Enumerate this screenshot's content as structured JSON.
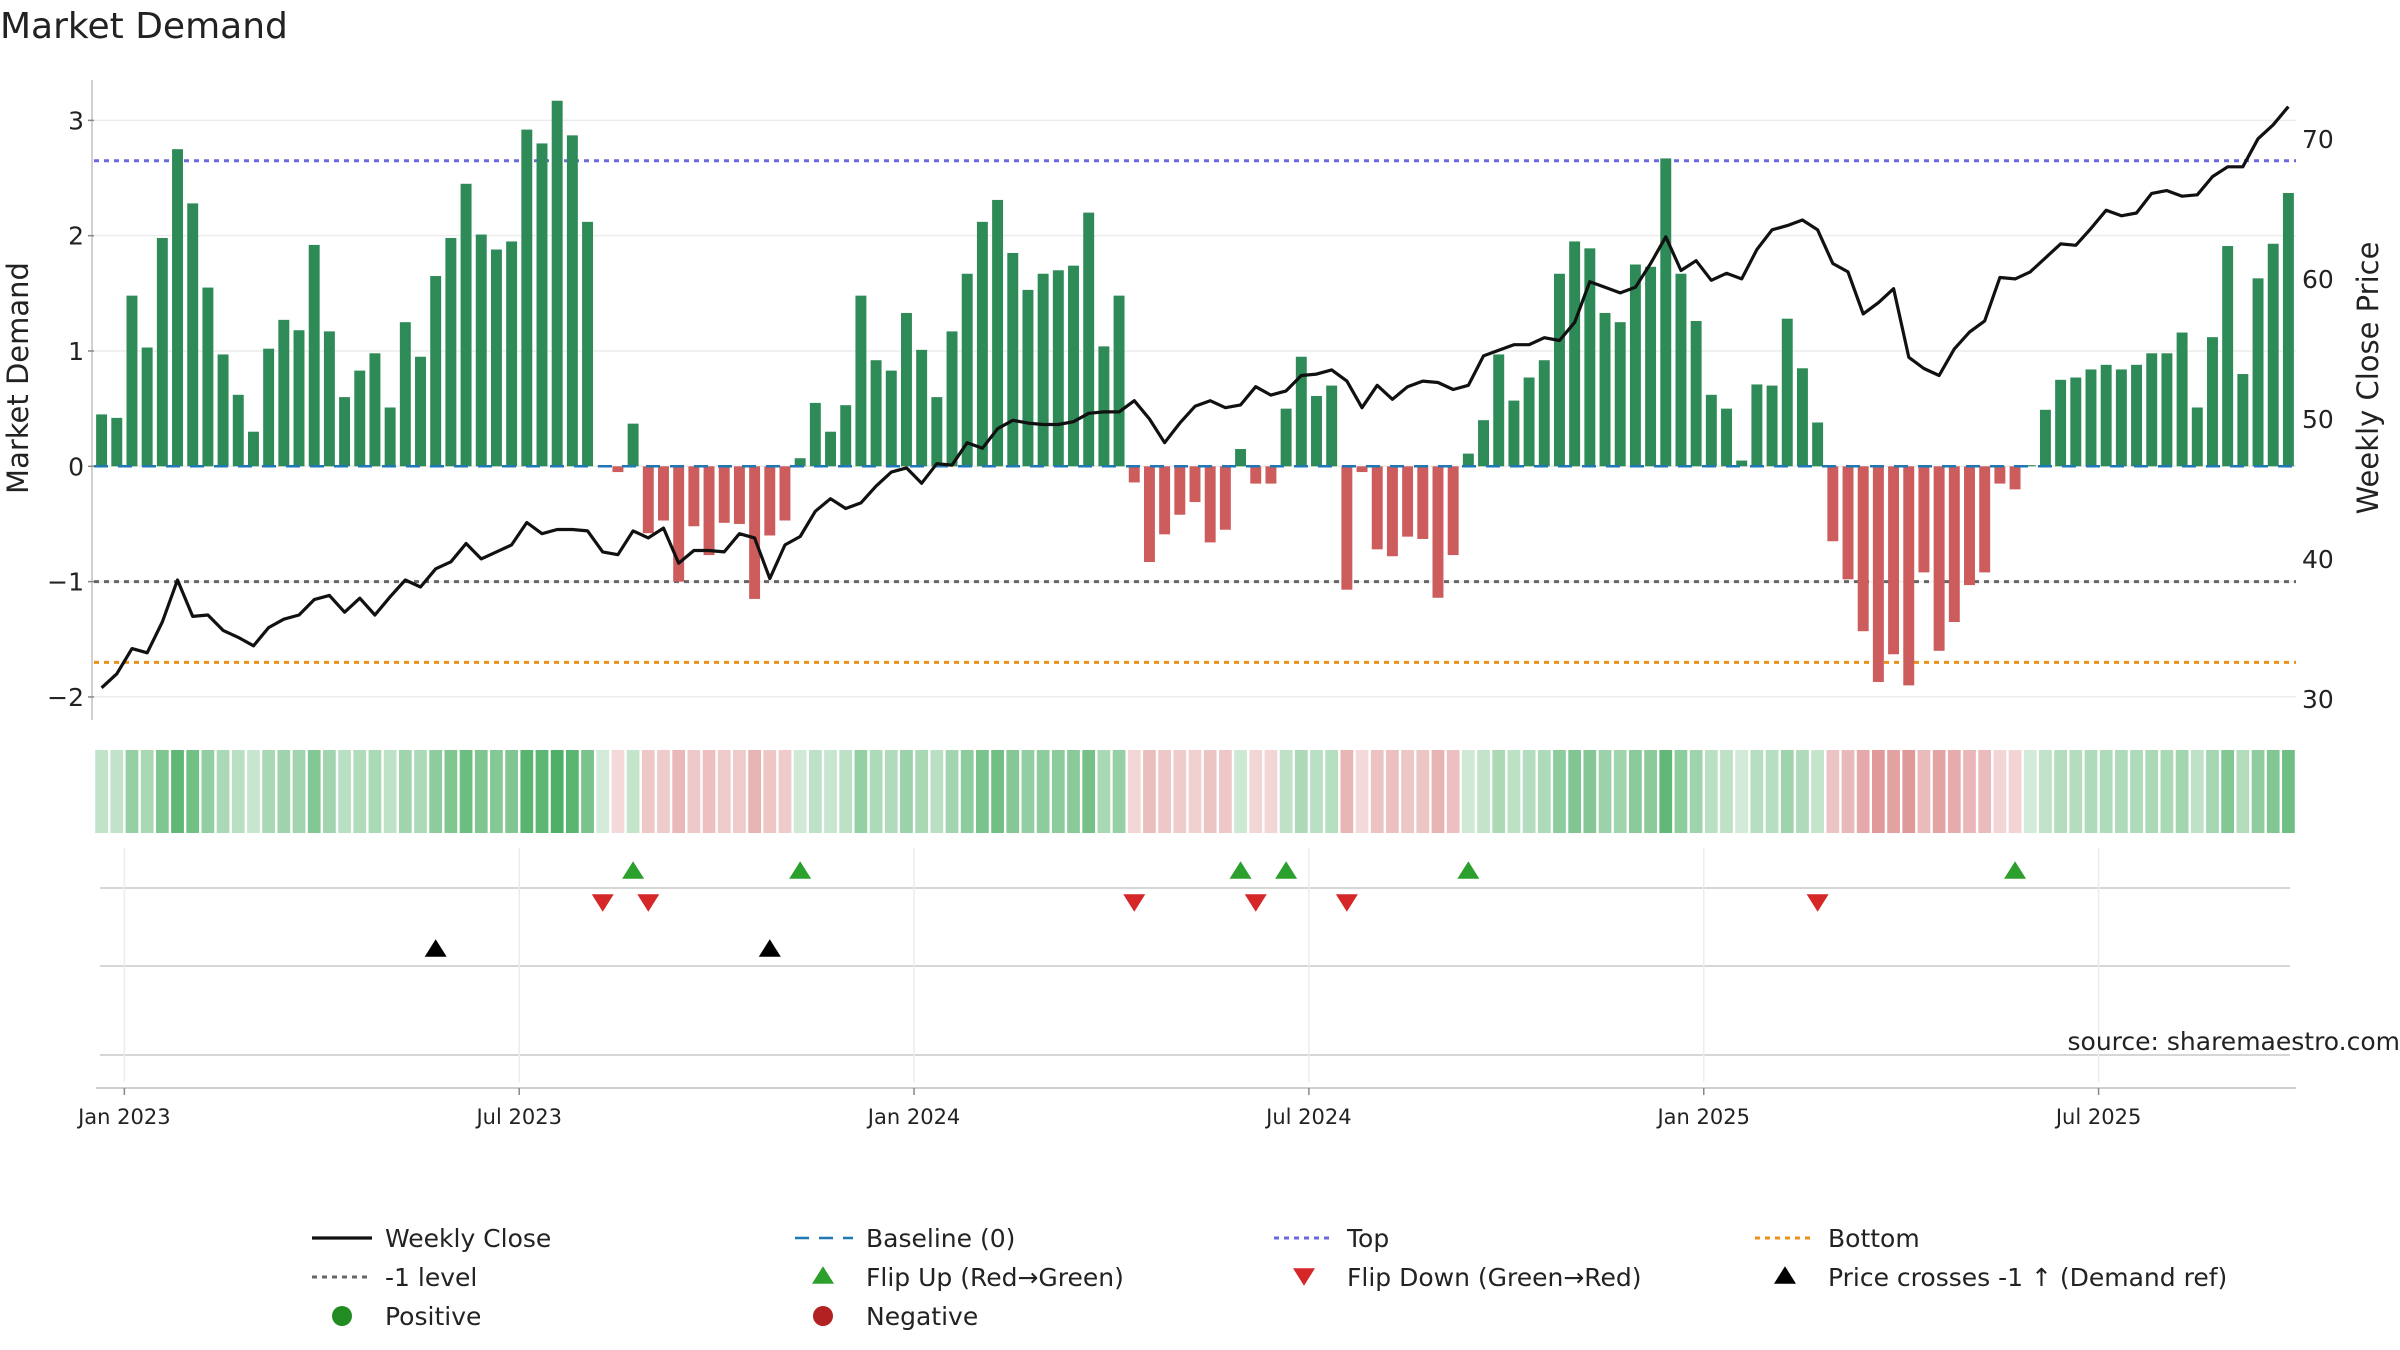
{
  "chart_data": {
    "type": "bar",
    "title": "Market Demand",
    "ylabel": "Market Demand",
    "y2label": "Weekly Close Price",
    "ylim": [
      -2.2,
      3.35
    ],
    "y2lim": [
      28.5,
      74.2
    ],
    "yticks": [
      3,
      2,
      1,
      0,
      -1,
      -2
    ],
    "yticklabels": [
      "3",
      "2",
      "1",
      "0",
      "−1",
      "−2"
    ],
    "y2ticks": [
      70,
      60,
      50,
      40,
      30
    ],
    "y2ticklabels": [
      "70",
      "60",
      "50",
      "40",
      "30"
    ],
    "xtick_labels": [
      "Jan 2023",
      "Jul 2023",
      "Jan 2024",
      "Jul 2024",
      "Jan 2025",
      "Jul 2025"
    ],
    "xtick_index": [
      1.5,
      27.5,
      53.5,
      79.5,
      105.5,
      131.5
    ],
    "hlines": {
      "top": 2.65,
      "minus_one": -1,
      "bottom": -1.7
    },
    "demand": [
      0.45,
      0.42,
      1.48,
      1.03,
      1.98,
      2.75,
      2.28,
      1.55,
      0.97,
      0.62,
      0.3,
      1.02,
      1.27,
      1.18,
      1.92,
      1.17,
      0.6,
      0.83,
      0.98,
      0.51,
      1.25,
      0.95,
      1.65,
      1.98,
      2.45,
      2.01,
      1.88,
      1.95,
      2.92,
      2.8,
      3.17,
      2.87,
      2.12,
      0.0,
      -0.05,
      0.37,
      -0.58,
      -0.47,
      -1.0,
      -0.52,
      -0.77,
      -0.49,
      -0.5,
      -1.15,
      -0.6,
      -0.47,
      0.07,
      0.55,
      0.3,
      0.53,
      1.48,
      0.92,
      0.83,
      1.33,
      1.01,
      0.6,
      1.17,
      1.67,
      2.12,
      2.31,
      1.85,
      1.53,
      1.67,
      1.7,
      1.74,
      2.2,
      1.04,
      1.48,
      -0.14,
      -0.83,
      -0.59,
      -0.42,
      -0.31,
      -0.66,
      -0.55,
      0.15,
      -0.15,
      -0.15,
      0.5,
      0.95,
      0.61,
      0.7,
      -1.07,
      -0.05,
      -0.72,
      -0.78,
      -0.61,
      -0.63,
      -1.14,
      -0.77,
      0.11,
      0.4,
      0.97,
      0.57,
      0.77,
      0.92,
      1.67,
      1.95,
      1.89,
      1.33,
      1.25,
      1.75,
      1.73,
      2.67,
      1.67,
      1.26,
      0.62,
      0.5,
      0.05,
      0.71,
      0.7,
      1.28,
      0.85,
      0.38,
      -0.65,
      -0.98,
      -1.43,
      -1.87,
      -1.63,
      -1.9,
      -0.92,
      -1.6,
      -1.35,
      -1.03,
      -0.92,
      -0.15,
      -0.2,
      0.01,
      0.49,
      0.75,
      0.77,
      0.84,
      0.88,
      0.84,
      0.88,
      0.98,
      0.98,
      1.16,
      0.51,
      1.12,
      1.91,
      0.8,
      1.63,
      1.93,
      2.37
    ],
    "weekly_close": [
      30.8,
      31.8,
      33.6,
      33.3,
      35.5,
      38.5,
      35.9,
      36.0,
      34.9,
      34.4,
      33.8,
      35.1,
      35.7,
      36.0,
      37.1,
      37.4,
      36.2,
      37.2,
      36.0,
      37.3,
      38.5,
      38.0,
      39.3,
      39.8,
      41.1,
      40.0,
      40.5,
      41.0,
      42.6,
      41.8,
      42.1,
      42.1,
      42.0,
      40.5,
      40.3,
      42.0,
      41.5,
      42.2,
      39.7,
      40.6,
      40.6,
      40.5,
      41.8,
      41.5,
      38.6,
      41.0,
      41.6,
      43.4,
      44.3,
      43.6,
      44.0,
      45.2,
      46.2,
      46.5,
      45.4,
      46.8,
      46.7,
      48.3,
      47.9,
      49.3,
      49.9,
      49.7,
      49.6,
      49.6,
      49.8,
      50.4,
      50.5,
      50.5,
      51.3,
      50.0,
      48.3,
      49.7,
      50.9,
      51.3,
      50.8,
      51.0,
      52.3,
      51.7,
      52.0,
      53.1,
      53.2,
      53.5,
      52.7,
      50.8,
      52.4,
      51.4,
      52.3,
      52.7,
      52.6,
      52.1,
      52.4,
      54.5,
      54.9,
      55.3,
      55.3,
      55.8,
      55.6,
      56.9,
      59.8,
      59.4,
      59.0,
      59.4,
      61.1,
      63.0,
      60.6,
      61.3,
      59.9,
      60.4,
      60.0,
      62.1,
      63.5,
      63.8,
      64.2,
      63.5,
      61.1,
      60.5,
      57.5,
      58.3,
      59.3,
      54.4,
      53.6,
      53.1,
      55.0,
      56.2,
      57.0,
      60.1,
      60.0,
      60.5,
      61.5,
      62.5,
      62.4,
      63.6,
      64.9,
      64.5,
      64.7,
      66.1,
      66.3,
      65.9,
      66.0,
      67.3,
      68.0,
      68.0,
      70.0,
      71.0,
      72.3
    ],
    "flip_up_index": [
      35,
      46,
      75,
      78,
      90,
      126
    ],
    "flip_down_index": [
      33,
      36,
      68,
      76,
      82,
      113
    ],
    "price_cross_index": [
      22,
      44
    ],
    "source": "source: sharemaestro.com",
    "legend": [
      {
        "label": "Weekly Close",
        "symbol": "line-black"
      },
      {
        "label": "Baseline (0)",
        "symbol": "dash-blue"
      },
      {
        "label": "Top",
        "symbol": "dot-purple"
      },
      {
        "label": "Bottom",
        "symbol": "dot-orange"
      },
      {
        "label": "-1 level",
        "symbol": "dot-gray"
      },
      {
        "label": "Flip Up (Red→Green)",
        "symbol": "tri-up-green"
      },
      {
        "label": "Flip Down (Green→Red)",
        "symbol": "tri-down-red"
      },
      {
        "label": "Price crosses -1 ↑ (Demand ref)",
        "symbol": "tri-up-black"
      },
      {
        "label": "Positive",
        "symbol": "dot-green"
      },
      {
        "label": "Negative",
        "symbol": "dot-red"
      }
    ],
    "colors": {
      "positive": "#2e8b57",
      "negative": "#cd5c5c",
      "top": "#6a6ad8",
      "bottom": "#e8921a",
      "minus_one": "#666666",
      "baseline": "#1f77b4",
      "price": "#111111",
      "flip_up": "#2ca02c",
      "flip_down": "#d62728",
      "cross": "#000000",
      "dot_pos": "#228b22",
      "dot_neg": "#b22222"
    }
  }
}
